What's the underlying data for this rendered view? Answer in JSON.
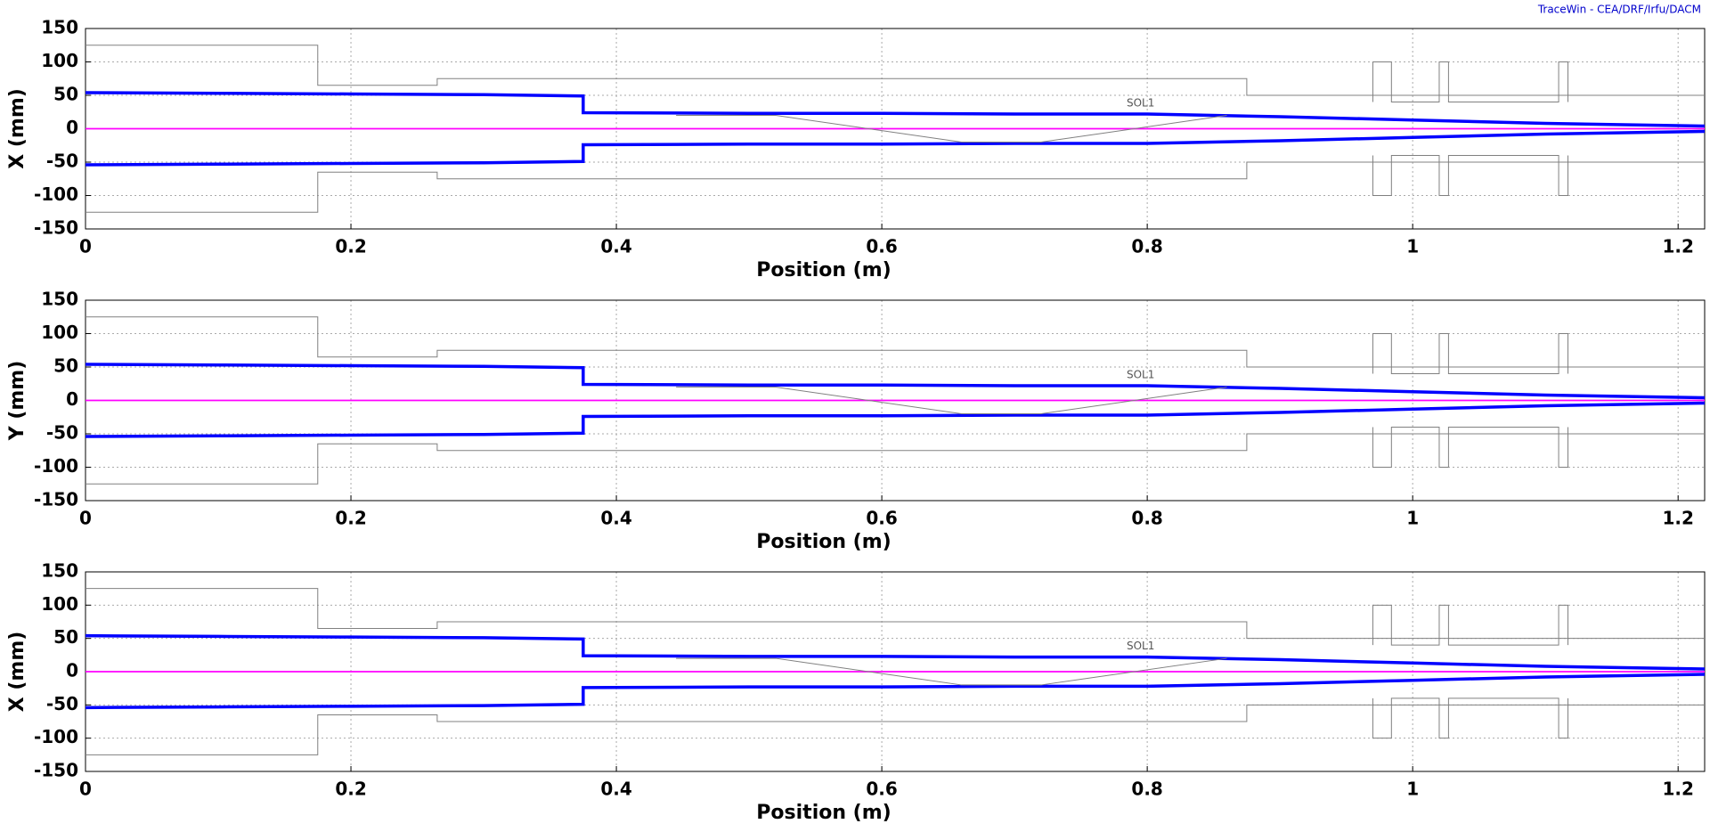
{
  "title": "TraceWin - CEA/DRF/Irfu/DACM",
  "chart_data": [
    {
      "type": "line",
      "xlabel": "Position (m)",
      "ylabel": "X (mm)",
      "annotation": "SOL1",
      "annotation_at": [
        0.795,
        38
      ],
      "xlim": [
        0,
        1.22
      ],
      "ylim": [
        -150,
        150
      ],
      "xticks": [
        0,
        0.2,
        0.4,
        0.6,
        0.8,
        1,
        1.2
      ],
      "yticks": [
        -150,
        -100,
        -50,
        0,
        50,
        100,
        150
      ],
      "grid": true,
      "series": [
        {
          "color": "#0000ff",
          "x": [
            0,
            0.1,
            0.2,
            0.3,
            0.375,
            0.375,
            0.5,
            0.6,
            0.7,
            0.8,
            0.9,
            1.0,
            1.1,
            1.22
          ],
          "values": [
            54,
            53,
            52,
            51,
            49,
            24,
            23,
            23,
            22,
            22,
            18,
            13,
            8,
            4
          ]
        },
        {
          "color": "#0000ff",
          "x": [
            0,
            0.1,
            0.2,
            0.3,
            0.375,
            0.375,
            0.5,
            0.6,
            0.7,
            0.8,
            0.9,
            1.0,
            1.1,
            1.22
          ],
          "values": [
            -54,
            -53,
            -52,
            -51,
            -49,
            -24,
            -23,
            -23,
            -22,
            -22,
            -18,
            -13,
            -8,
            -4
          ]
        },
        {
          "color": "#ff00ff",
          "x": [
            0,
            1.22
          ],
          "values": [
            0,
            0
          ]
        },
        {
          "color": "#808080",
          "x": [
            0,
            0.175,
            0.175,
            0.265,
            0.265,
            0.875,
            0.875,
            1.22
          ],
          "values": [
            125,
            125,
            65,
            65,
            75,
            75,
            50,
            50
          ]
        },
        {
          "color": "#808080",
          "x": [
            0,
            0.175,
            0.175,
            0.265,
            0.265,
            0.875,
            0.875,
            1.22
          ],
          "values": [
            -125,
            -125,
            -65,
            -65,
            -75,
            -75,
            -50,
            -50
          ]
        },
        {
          "color": "#808080",
          "x": [
            0.97,
            0.97,
            0.984,
            0.984,
            1.02,
            1.02,
            1.027,
            1.027,
            1.11,
            1.11,
            1.117,
            1.117
          ],
          "values": [
            40,
            100,
            100,
            40,
            40,
            100,
            100,
            40,
            40,
            100,
            100,
            40
          ]
        },
        {
          "color": "#808080",
          "x": [
            0.97,
            0.97,
            0.984,
            0.984,
            1.02,
            1.02,
            1.027,
            1.027,
            1.11,
            1.11,
            1.117,
            1.117
          ],
          "values": [
            -40,
            -100,
            -100,
            -40,
            -40,
            -100,
            -100,
            -40,
            -40,
            -100,
            -100,
            -40
          ]
        },
        {
          "color": "#808080",
          "x": [
            0.445,
            0.52,
            0.66,
            0.72,
            0.86
          ],
          "values": [
            20,
            20,
            -20,
            -20,
            20
          ]
        }
      ]
    },
    {
      "type": "line",
      "xlabel": "Position (m)",
      "ylabel": "Y (mm)",
      "annotation": "SOL1",
      "annotation_at": [
        0.795,
        38
      ],
      "xlim": [
        0,
        1.22
      ],
      "ylim": [
        -150,
        150
      ],
      "xticks": [
        0,
        0.2,
        0.4,
        0.6,
        0.8,
        1,
        1.2
      ],
      "yticks": [
        -150,
        -100,
        -50,
        0,
        50,
        100,
        150
      ],
      "grid": true,
      "series": [
        {
          "color": "#0000ff",
          "x": [
            0,
            0.1,
            0.2,
            0.3,
            0.375,
            0.375,
            0.5,
            0.6,
            0.7,
            0.8,
            0.9,
            1.0,
            1.1,
            1.22
          ],
          "values": [
            54,
            53,
            52,
            51,
            49,
            24,
            23,
            23,
            22,
            22,
            18,
            13,
            8,
            4
          ]
        },
        {
          "color": "#0000ff",
          "x": [
            0,
            0.1,
            0.2,
            0.3,
            0.375,
            0.375,
            0.5,
            0.6,
            0.7,
            0.8,
            0.9,
            1.0,
            1.1,
            1.22
          ],
          "values": [
            -54,
            -53,
            -52,
            -51,
            -49,
            -24,
            -23,
            -23,
            -22,
            -22,
            -18,
            -13,
            -8,
            -4
          ]
        },
        {
          "color": "#ff00ff",
          "x": [
            0,
            1.22
          ],
          "values": [
            0,
            0
          ]
        },
        {
          "color": "#808080",
          "x": [
            0,
            0.175,
            0.175,
            0.265,
            0.265,
            0.875,
            0.875,
            1.22
          ],
          "values": [
            125,
            125,
            65,
            65,
            75,
            75,
            50,
            50
          ]
        },
        {
          "color": "#808080",
          "x": [
            0,
            0.175,
            0.175,
            0.265,
            0.265,
            0.875,
            0.875,
            1.22
          ],
          "values": [
            -125,
            -125,
            -65,
            -65,
            -75,
            -75,
            -50,
            -50
          ]
        },
        {
          "color": "#808080",
          "x": [
            0.97,
            0.97,
            0.984,
            0.984,
            1.02,
            1.02,
            1.027,
            1.027,
            1.11,
            1.11,
            1.117,
            1.117
          ],
          "values": [
            40,
            100,
            100,
            40,
            40,
            100,
            100,
            40,
            40,
            100,
            100,
            40
          ]
        },
        {
          "color": "#808080",
          "x": [
            0.97,
            0.97,
            0.984,
            0.984,
            1.02,
            1.02,
            1.027,
            1.027,
            1.11,
            1.11,
            1.117,
            1.117
          ],
          "values": [
            -40,
            -100,
            -100,
            -40,
            -40,
            -100,
            -100,
            -40,
            -40,
            -100,
            -100,
            -40
          ]
        },
        {
          "color": "#808080",
          "x": [
            0.445,
            0.52,
            0.66,
            0.72,
            0.86
          ],
          "values": [
            20,
            20,
            -20,
            -20,
            20
          ]
        }
      ]
    },
    {
      "type": "line",
      "xlabel": "Position (m)",
      "ylabel": "X (mm)",
      "annotation": "SOL1",
      "annotation_at": [
        0.795,
        38
      ],
      "xlim": [
        0,
        1.22
      ],
      "ylim": [
        -150,
        150
      ],
      "xticks": [
        0,
        0.2,
        0.4,
        0.6,
        0.8,
        1,
        1.2
      ],
      "yticks": [
        -150,
        -100,
        -50,
        0,
        50,
        100,
        150
      ],
      "grid": true,
      "series": [
        {
          "color": "#0000ff",
          "x": [
            0,
            0.1,
            0.2,
            0.3,
            0.375,
            0.375,
            0.5,
            0.6,
            0.7,
            0.8,
            0.9,
            1.0,
            1.1,
            1.22
          ],
          "values": [
            54,
            53,
            52,
            51,
            49,
            24,
            23,
            23,
            22,
            22,
            18,
            13,
            8,
            4
          ]
        },
        {
          "color": "#0000ff",
          "x": [
            0,
            0.1,
            0.2,
            0.3,
            0.375,
            0.375,
            0.5,
            0.6,
            0.7,
            0.8,
            0.9,
            1.0,
            1.1,
            1.22
          ],
          "values": [
            -54,
            -53,
            -52,
            -51,
            -49,
            -24,
            -23,
            -23,
            -22,
            -22,
            -18,
            -13,
            -8,
            -4
          ]
        },
        {
          "color": "#ff00ff",
          "x": [
            0,
            1.22
          ],
          "values": [
            0,
            0
          ]
        },
        {
          "color": "#808080",
          "x": [
            0,
            0.175,
            0.175,
            0.265,
            0.265,
            0.875,
            0.875,
            1.22
          ],
          "values": [
            125,
            125,
            65,
            65,
            75,
            75,
            50,
            50
          ]
        },
        {
          "color": "#808080",
          "x": [
            0,
            0.175,
            0.175,
            0.265,
            0.265,
            0.875,
            0.875,
            1.22
          ],
          "values": [
            -125,
            -125,
            -65,
            -65,
            -75,
            -75,
            -50,
            -50
          ]
        },
        {
          "color": "#808080",
          "x": [
            0.97,
            0.97,
            0.984,
            0.984,
            1.02,
            1.02,
            1.027,
            1.027,
            1.11,
            1.11,
            1.117,
            1.117
          ],
          "values": [
            40,
            100,
            100,
            40,
            40,
            100,
            100,
            40,
            40,
            100,
            100,
            40
          ]
        },
        {
          "color": "#808080",
          "x": [
            0.97,
            0.97,
            0.984,
            0.984,
            1.02,
            1.02,
            1.027,
            1.027,
            1.11,
            1.11,
            1.117,
            1.117
          ],
          "values": [
            -40,
            -100,
            -100,
            -40,
            -40,
            -100,
            -100,
            -40,
            -40,
            -100,
            -100,
            -40
          ]
        },
        {
          "color": "#808080",
          "x": [
            0.445,
            0.52,
            0.66,
            0.72,
            0.86
          ],
          "values": [
            20,
            20,
            -20,
            -20,
            20
          ]
        }
      ]
    }
  ]
}
